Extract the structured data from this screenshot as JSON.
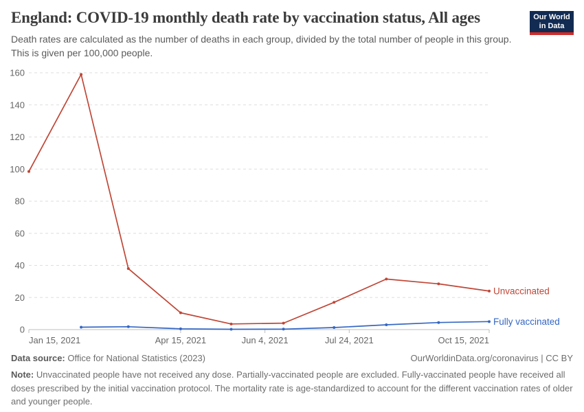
{
  "header": {
    "title": "England: COVID-19 monthly death rate by vaccination status, All ages",
    "subtitle": "Death rates are calculated as the number of deaths in each group, divided by the total number of people in this group. This is given per 100,000 people.",
    "logo": {
      "line1": "Our World",
      "line2": "in Data",
      "bg_color": "#122B52",
      "stripe_color": "#D22A27"
    }
  },
  "chart_data": {
    "type": "line",
    "title": "England: COVID-19 monthly death rate by vaccination status, All ages",
    "unit": "deaths per 100,000 people",
    "x": [
      "Jan 15, 2021",
      "Feb 15, 2021",
      "Mar 15, 2021",
      "Apr 15, 2021",
      "May 15, 2021",
      "Jun 15, 2021",
      "Jul 15, 2021",
      "Aug 15, 2021",
      "Sep 15, 2021",
      "Oct 15, 2021"
    ],
    "x_day_offsets": [
      0,
      31,
      59,
      90,
      120,
      151,
      181,
      212,
      243,
      273
    ],
    "series": [
      {
        "name": "Unvaccinated",
        "color": "#BF4636",
        "values": [
          98.5,
          159,
          38,
          10.5,
          3.5,
          4,
          17,
          31.5,
          28.5,
          24
        ]
      },
      {
        "name": "Fully vaccinated",
        "color": "#3467C4",
        "values": [
          null,
          1.5,
          1.8,
          0.5,
          0.2,
          0.3,
          1.3,
          3,
          4.4,
          5
        ]
      }
    ],
    "ylim": [
      0,
      160
    ],
    "y_ticks": [
      0,
      20,
      40,
      60,
      80,
      100,
      120,
      140,
      160
    ],
    "x_ticks": [
      {
        "label": "Jan 15, 2021",
        "day": 0,
        "anchor": "start"
      },
      {
        "label": "Apr 15, 2021",
        "day": 90,
        "anchor": "middle"
      },
      {
        "label": "Jun 4, 2021",
        "day": 140,
        "anchor": "middle"
      },
      {
        "label": "Jul 24, 2021",
        "day": 190,
        "anchor": "middle"
      },
      {
        "label": "Oct 15, 2021",
        "day": 273,
        "anchor": "end"
      }
    ],
    "grid": "horizontal-dashed",
    "legend": "line-end-labels",
    "grid_color": "#dedede",
    "axis_color": "#bcbcbc",
    "tick_label_color": "#666666"
  },
  "footer": {
    "source_label": "Data source:",
    "source_text": "Office for National Statistics (2023)",
    "credit": "OurWorldinData.org/coronavirus | CC BY",
    "note_label": "Note:",
    "note_text": "Unvaccinated people have not received any dose. Partially-vaccinated people are excluded. Fully-vaccinated people have received all doses prescribed by the initial vaccination protocol. The mortality rate is age-standardized to account for the different vaccination rates of older and younger people."
  }
}
